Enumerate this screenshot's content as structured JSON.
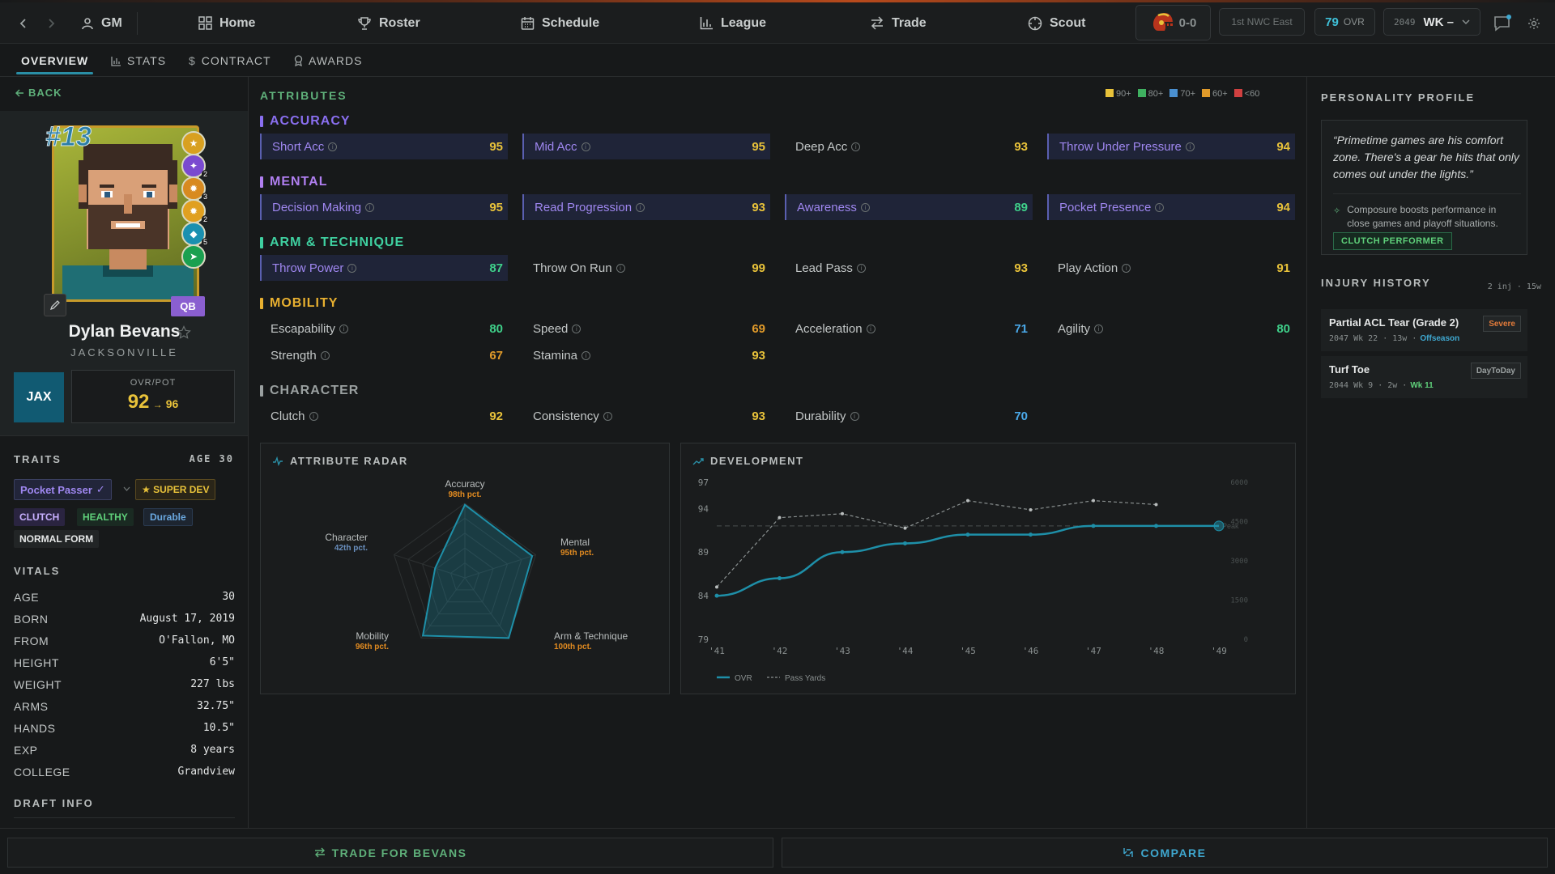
{
  "topbar": {
    "gm_label": "GM",
    "nav": [
      "Home",
      "Roster",
      "Schedule",
      "League",
      "Trade",
      "Scout"
    ],
    "record": "0-0",
    "standing": "1st NWC East",
    "team_ovr_value": "79",
    "team_ovr_label": "OVR",
    "season": "2049",
    "week": "WK –"
  },
  "subtabs": [
    "OVERVIEW",
    "STATS",
    "CONTRACT",
    "AWARDS"
  ],
  "player": {
    "back_label": "BACK",
    "jersey": "#13",
    "position": "QB",
    "name": "Dylan Bevans",
    "team_city": "JACKSONVILLE",
    "team_abbr": "JAX",
    "ovr_pot_label": "OVR/POT",
    "ovr": "92",
    "arrow": "→",
    "pot": "96",
    "badge_counts": [
      "2",
      "3",
      "2",
      "2",
      "5",
      ""
    ]
  },
  "traits": {
    "title": "TRAITS",
    "age": "AGE 30",
    "archetype": "Pocket Passer",
    "dev": "★ SUPER DEV",
    "tags": [
      "CLUTCH",
      "HEALTHY",
      "Durable"
    ],
    "form": "NORMAL FORM"
  },
  "vitals": {
    "title": "VITALS",
    "rows": [
      {
        "k": "AGE",
        "v": "30"
      },
      {
        "k": "BORN",
        "v": "August 17, 2019"
      },
      {
        "k": "FROM",
        "v": "O'Fallon, MO"
      },
      {
        "k": "HEIGHT",
        "v": "6'5\""
      },
      {
        "k": "WEIGHT",
        "v": "227 lbs"
      },
      {
        "k": "ARMS",
        "v": "32.75\""
      },
      {
        "k": "HANDS",
        "v": "10.5\""
      },
      {
        "k": "EXP",
        "v": "8 years"
      },
      {
        "k": "COLLEGE",
        "v": "Grandview"
      }
    ],
    "draft_title": "DRAFT INFO"
  },
  "attributes": {
    "title": "ATTRIBUTES",
    "legend": [
      "90+",
      "80+",
      "70+",
      "60+",
      "<60"
    ],
    "legend_colors": [
      "#e8c23a",
      "#3fb060",
      "#4a90d0",
      "#e09a2a",
      "#d04040"
    ],
    "categories": [
      {
        "name": "ACCURACY",
        "color": "#8a6ff0",
        "items": [
          {
            "n": "Short Acc",
            "v": "95",
            "hl": true
          },
          {
            "n": "Mid Acc",
            "v": "95",
            "hl": true
          },
          {
            "n": "Deep Acc",
            "v": "93",
            "hl": false
          },
          {
            "n": "Throw Under Pressure",
            "v": "94",
            "hl": true
          }
        ]
      },
      {
        "name": "MENTAL",
        "color": "#b07ff0",
        "items": [
          {
            "n": "Decision Making",
            "v": "95",
            "hl": true
          },
          {
            "n": "Read Progression",
            "v": "93",
            "hl": true
          },
          {
            "n": "Awareness",
            "v": "89",
            "hl": true
          },
          {
            "n": "Pocket Presence",
            "v": "94",
            "hl": true
          }
        ]
      },
      {
        "name": "ARM & TECHNIQUE",
        "color": "#3fd0a0",
        "items": [
          {
            "n": "Throw Power",
            "v": "87",
            "hl": true
          },
          {
            "n": "Throw On Run",
            "v": "99",
            "hl": false
          },
          {
            "n": "Lead Pass",
            "v": "93",
            "hl": false
          },
          {
            "n": "Play Action",
            "v": "91",
            "hl": false
          }
        ]
      },
      {
        "name": "MOBILITY",
        "color": "#e8b030",
        "items": [
          {
            "n": "Escapability",
            "v": "80",
            "hl": false
          },
          {
            "n": "Speed",
            "v": "69",
            "hl": false
          },
          {
            "n": "Acceleration",
            "v": "71",
            "hl": false
          },
          {
            "n": "Agility",
            "v": "80",
            "hl": false
          },
          {
            "n": "Strength",
            "v": "67",
            "hl": false
          },
          {
            "n": "Stamina",
            "v": "93",
            "hl": false
          }
        ]
      },
      {
        "name": "CHARACTER",
        "color": "#9aa0a0",
        "items": [
          {
            "n": "Clutch",
            "v": "92",
            "hl": false
          },
          {
            "n": "Consistency",
            "v": "93",
            "hl": false
          },
          {
            "n": "Durability",
            "v": "70",
            "hl": false
          }
        ]
      }
    ]
  },
  "radar": {
    "title": "ATTRIBUTE RADAR",
    "axes": [
      {
        "name": "Accuracy",
        "pct": "98th pct.",
        "value": 98
      },
      {
        "name": "Mental",
        "pct": "95th pct.",
        "value": 95
      },
      {
        "name": "Arm & Technique",
        "pct": "100th pct.",
        "value": 100
      },
      {
        "name": "Mobility",
        "pct": "96th pct.",
        "value": 96
      },
      {
        "name": "Character",
        "pct": "42th pct.",
        "value": 42
      }
    ]
  },
  "chart_data": {
    "type": "line",
    "title": "DEVELOPMENT",
    "x": [
      "'41",
      "'42",
      "'43",
      "'44",
      "'45",
      "'46",
      "'47",
      "'48",
      "'49"
    ],
    "series": [
      {
        "name": "OVR",
        "values": [
          84,
          86,
          89,
          90,
          91,
          91,
          92,
          92,
          92
        ],
        "color": "#1e8fa8",
        "axis": "left"
      },
      {
        "name": "Pass Yards",
        "values": [
          2000,
          4650,
          4800,
          4250,
          5300,
          4950,
          5300,
          5150,
          null
        ],
        "color": "#9aa0a0",
        "axis": "right",
        "dashed": true
      }
    ],
    "peak_label": "Peak",
    "left_ticks": [
      79,
      84,
      89,
      94,
      97
    ],
    "left_lim": [
      79,
      97
    ],
    "right_ticks": [
      0,
      1500,
      3000,
      4500,
      6000
    ],
    "right_lim": [
      0,
      6000
    ]
  },
  "personality": {
    "title": "PERSONALITY PROFILE",
    "quote": "“Primetime games are his comfort zone. There's a gear he hits that only comes out under the lights.”",
    "note": "Composure boosts performance in close games and playoff situations.",
    "tag": "CLUTCH PERFORMER"
  },
  "injury": {
    "title": "INJURY HISTORY",
    "summary": "2 inj · 15w",
    "items": [
      {
        "name": "Partial ACL Tear (Grade 2)",
        "meta": "2047 Wk 22 · 13w ·",
        "when": "Offseason",
        "sev": "Severe",
        "sev_color": "#e07a3a"
      },
      {
        "name": "Turf Toe",
        "meta": "2044 Wk 9 · 2w ·",
        "when": "Wk 11",
        "sev": "DayToDay",
        "sev_color": "#9aa0a0"
      }
    ]
  },
  "actions": {
    "trade": "TRADE FOR BEVANS",
    "compare": "COMPARE"
  }
}
